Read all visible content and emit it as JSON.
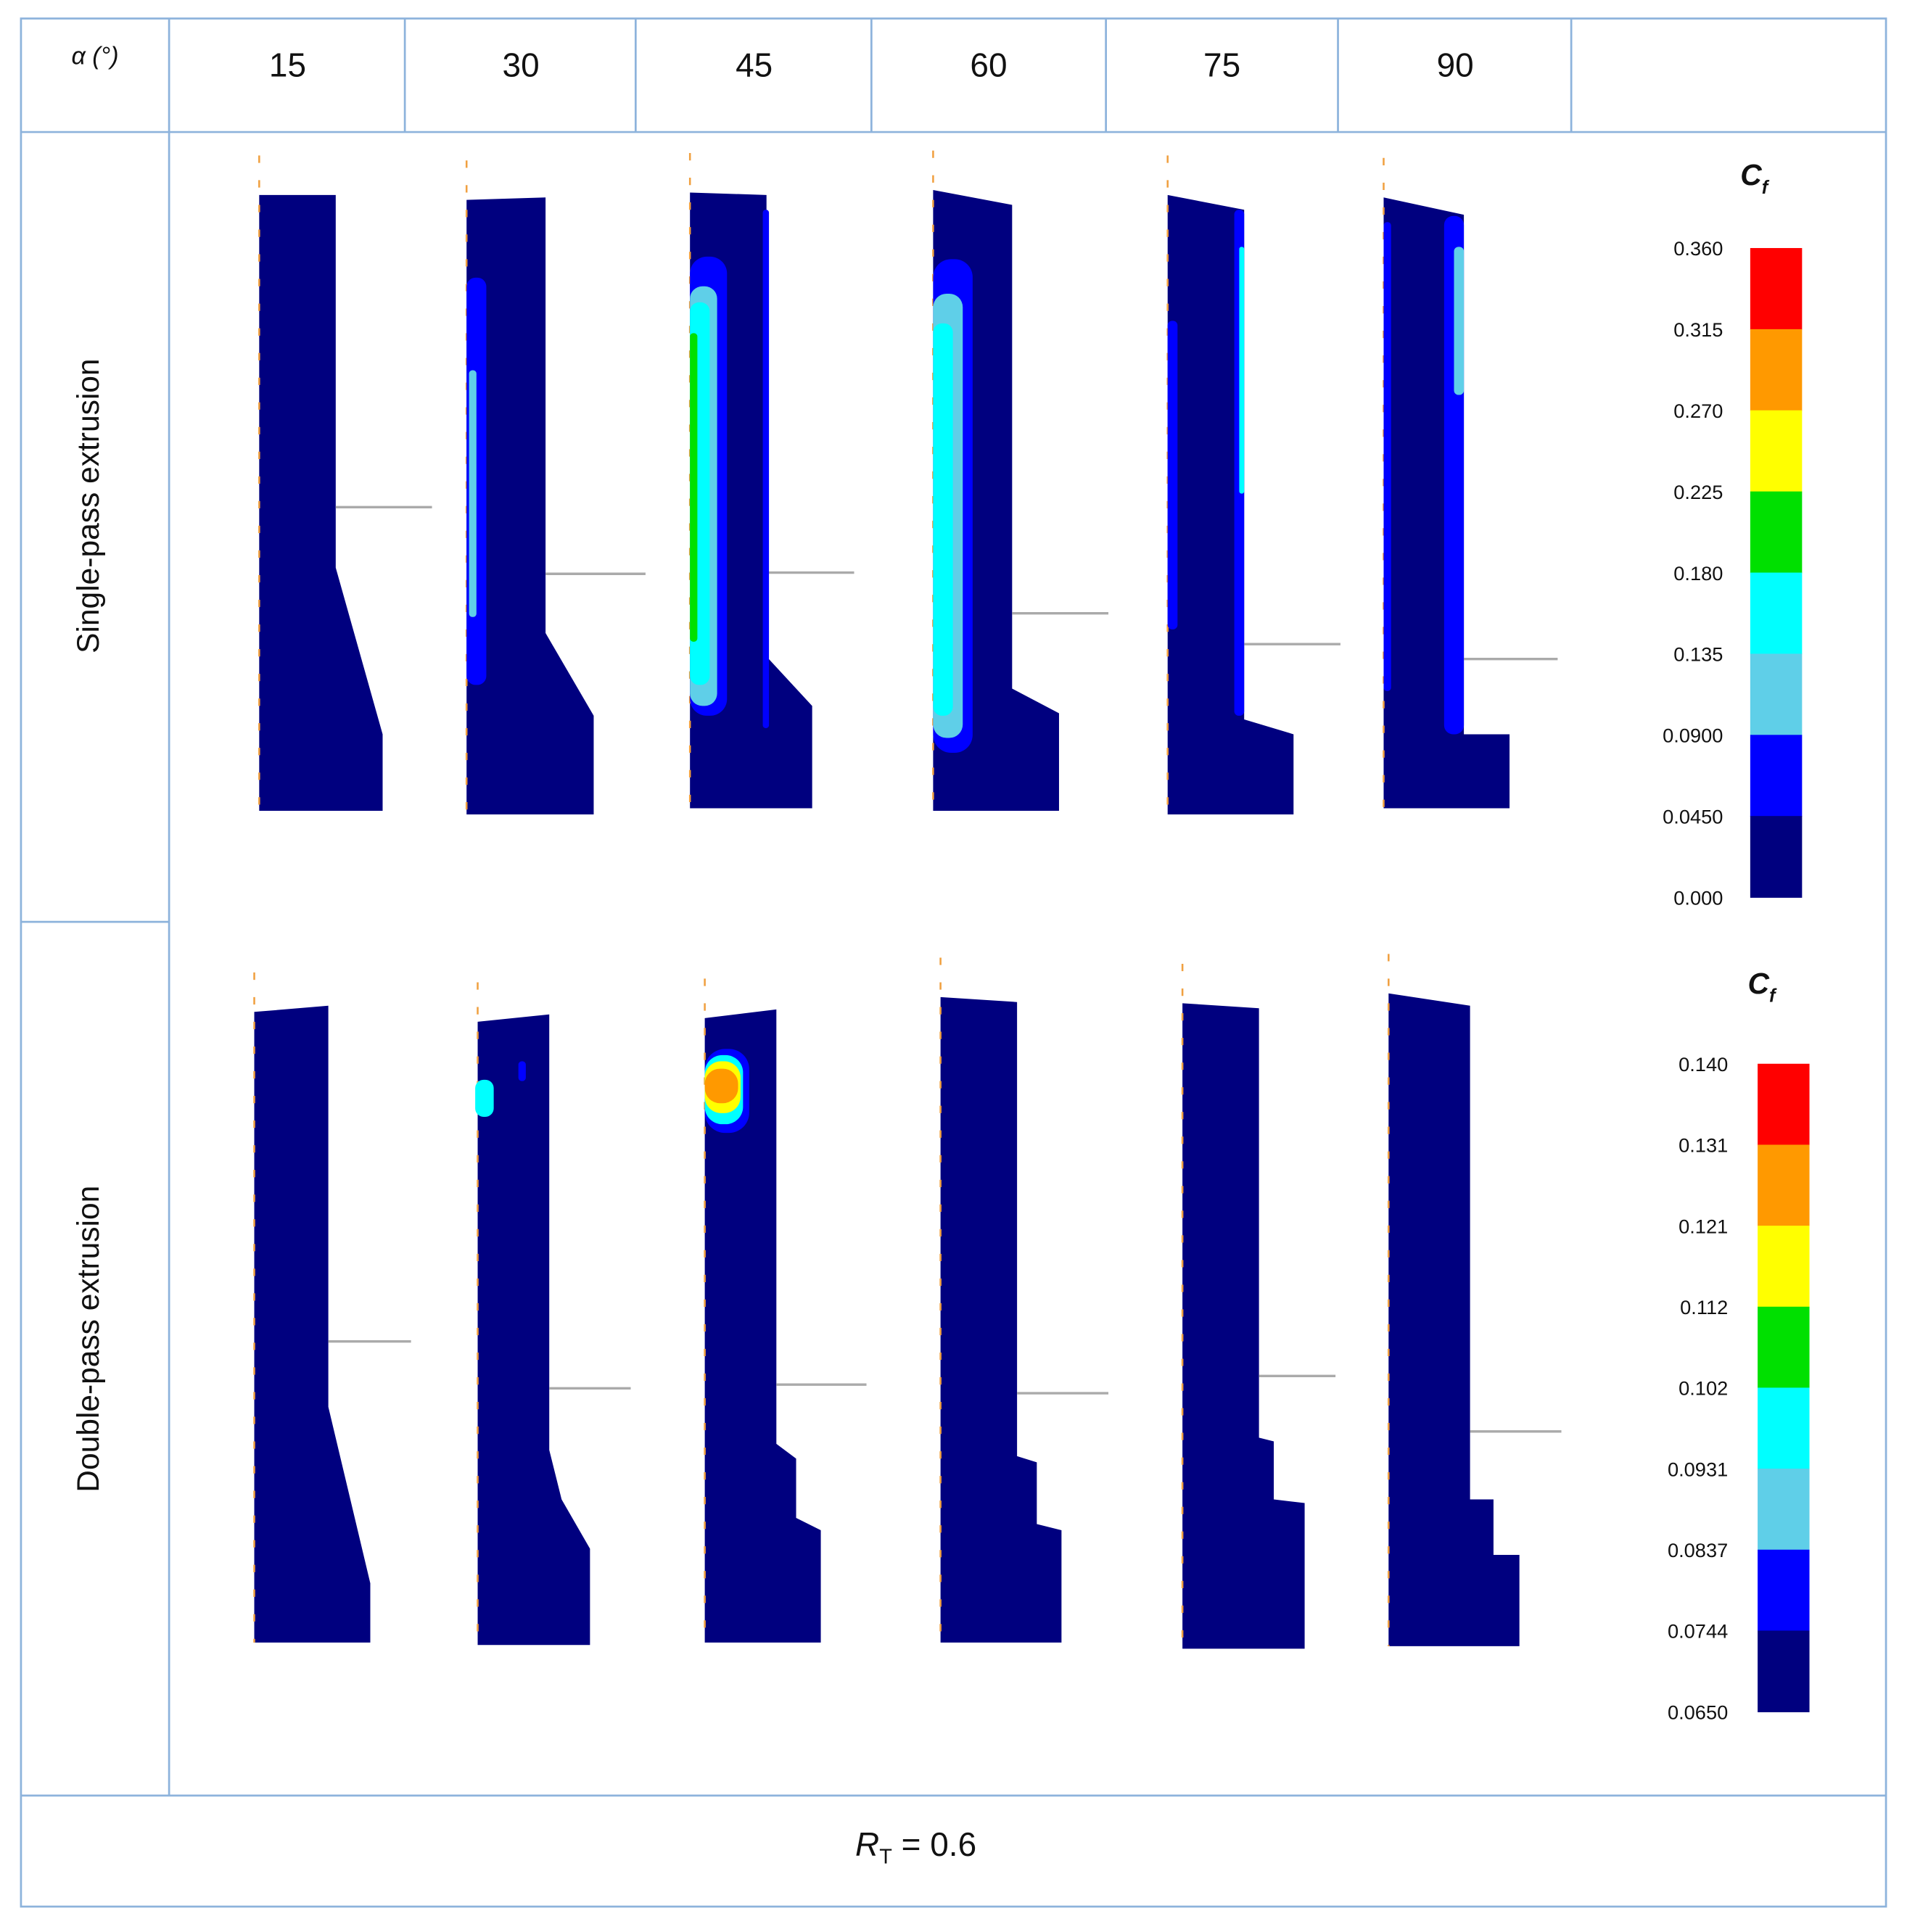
{
  "header": {
    "alpha_label": "α (°)",
    "angles": [
      "15",
      "30",
      "45",
      "60",
      "75",
      "90"
    ]
  },
  "rows": [
    "Single-pass extrusion",
    "Double-pass extrusion"
  ],
  "legends": [
    {
      "symbol": "C",
      "subscript": "f",
      "labels": [
        "0.360",
        "0.315",
        "0.270",
        "0.225",
        "0.180",
        "0.135",
        "0.0900",
        "0.0450",
        "0.000"
      ]
    },
    {
      "symbol": "C",
      "subscript": "f",
      "labels": [
        "0.140",
        "0.131",
        "0.121",
        "0.112",
        "0.102",
        "0.0931",
        "0.0837",
        "0.0744",
        "0.0650"
      ]
    }
  ],
  "footer": {
    "symbol": "R",
    "subscript": "T",
    "text": " = 0.6"
  }
}
